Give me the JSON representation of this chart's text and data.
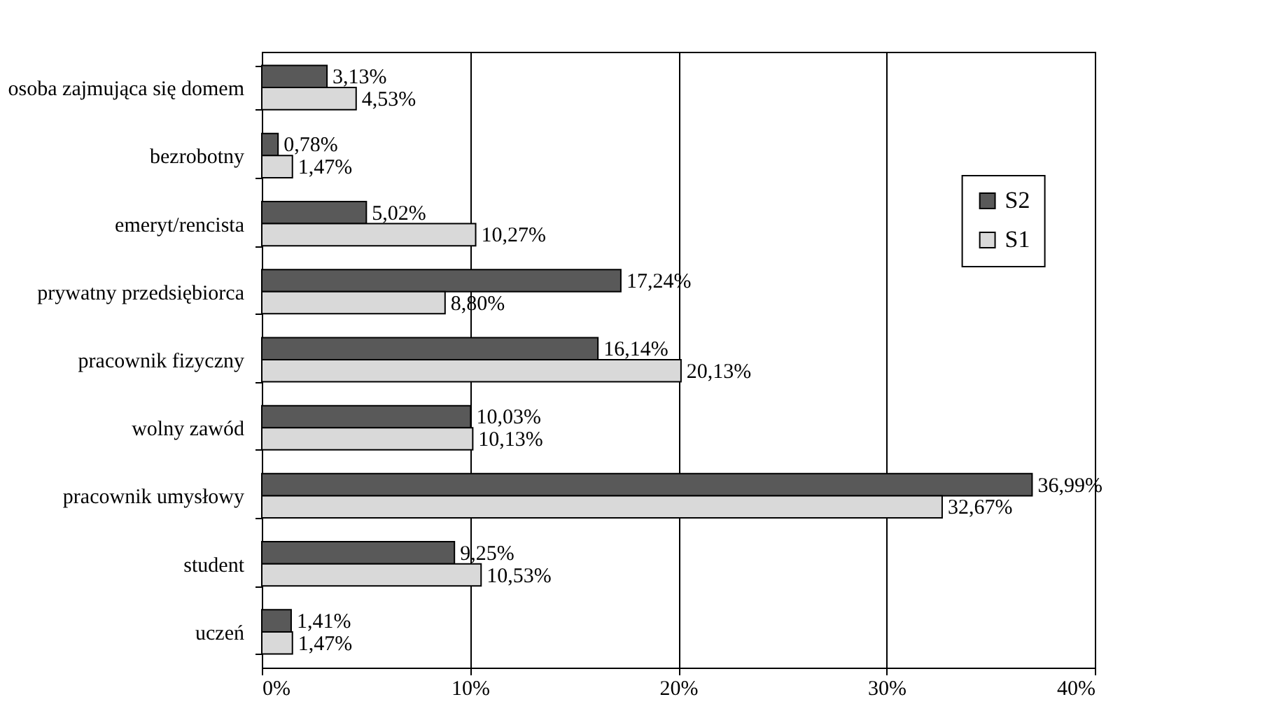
{
  "chart_data": {
    "type": "bar",
    "orientation": "horizontal",
    "categories": [
      "osoba zajmująca się domem",
      "bezrobotny",
      "emeryt/rencista",
      "prywatny przedsiębiorca",
      "pracownik fizyczny",
      "wolny zawód",
      "pracownik umysłowy",
      "student",
      "uczeń"
    ],
    "series": [
      {
        "name": "S2",
        "color": "#595959",
        "values": [
          3.13,
          0.78,
          5.02,
          17.24,
          16.14,
          10.03,
          36.99,
          9.25,
          1.41
        ],
        "value_labels": [
          "3,13%",
          "0,78%",
          "5,02%",
          "17,24%",
          "16,14%",
          "10,03%",
          "36,99%",
          "9,25%",
          "1,41%"
        ]
      },
      {
        "name": "S1",
        "color": "#d9d9d9",
        "values": [
          4.53,
          1.47,
          10.27,
          8.8,
          20.13,
          10.13,
          32.67,
          10.53,
          1.47
        ],
        "value_labels": [
          "4,53%",
          "1,47%",
          "10,27%",
          "8,80%",
          "20,13%",
          "10,13%",
          "32,67%",
          "10,53%",
          "1,47%"
        ]
      }
    ],
    "xlim": [
      0,
      40
    ],
    "xticks": [
      {
        "value": 0,
        "label": "0%"
      },
      {
        "value": 10,
        "label": "10%"
      },
      {
        "value": 20,
        "label": "20%"
      },
      {
        "value": 30,
        "label": "30%"
      },
      {
        "value": 40,
        "label": "40%"
      }
    ],
    "grid": "x",
    "legend": "right"
  }
}
